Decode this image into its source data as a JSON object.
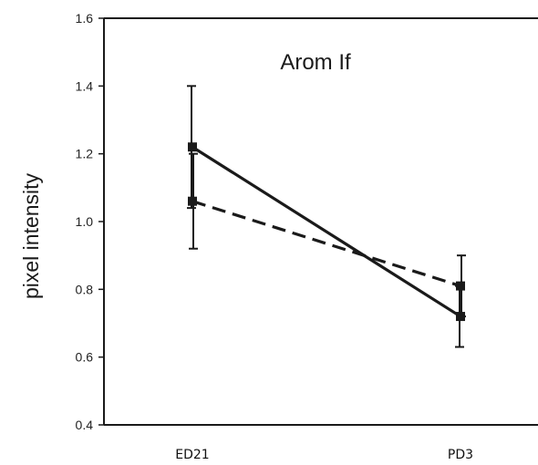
{
  "chart_data": {
    "type": "line",
    "title": "Arom If",
    "xlabel": "",
    "ylabel": "pixel intensity",
    "categories": [
      "ED21",
      "PD3"
    ],
    "ylim": [
      0.4,
      1.6
    ],
    "yticks": [
      "0.4",
      "0.6",
      "0.8",
      "1.0",
      "1.2",
      "1.4",
      "1.6"
    ],
    "grid": false,
    "legend": "none",
    "series": [
      {
        "style": "solid",
        "values": [
          1.22,
          0.72
        ],
        "errors": [
          0.18,
          0.09
        ]
      },
      {
        "style": "dashed",
        "values": [
          1.06,
          0.81
        ],
        "errors": [
          0.14,
          0.09
        ]
      }
    ],
    "colors": {
      "line": "#1a1a1a",
      "axis": "#1a1a1a"
    }
  }
}
